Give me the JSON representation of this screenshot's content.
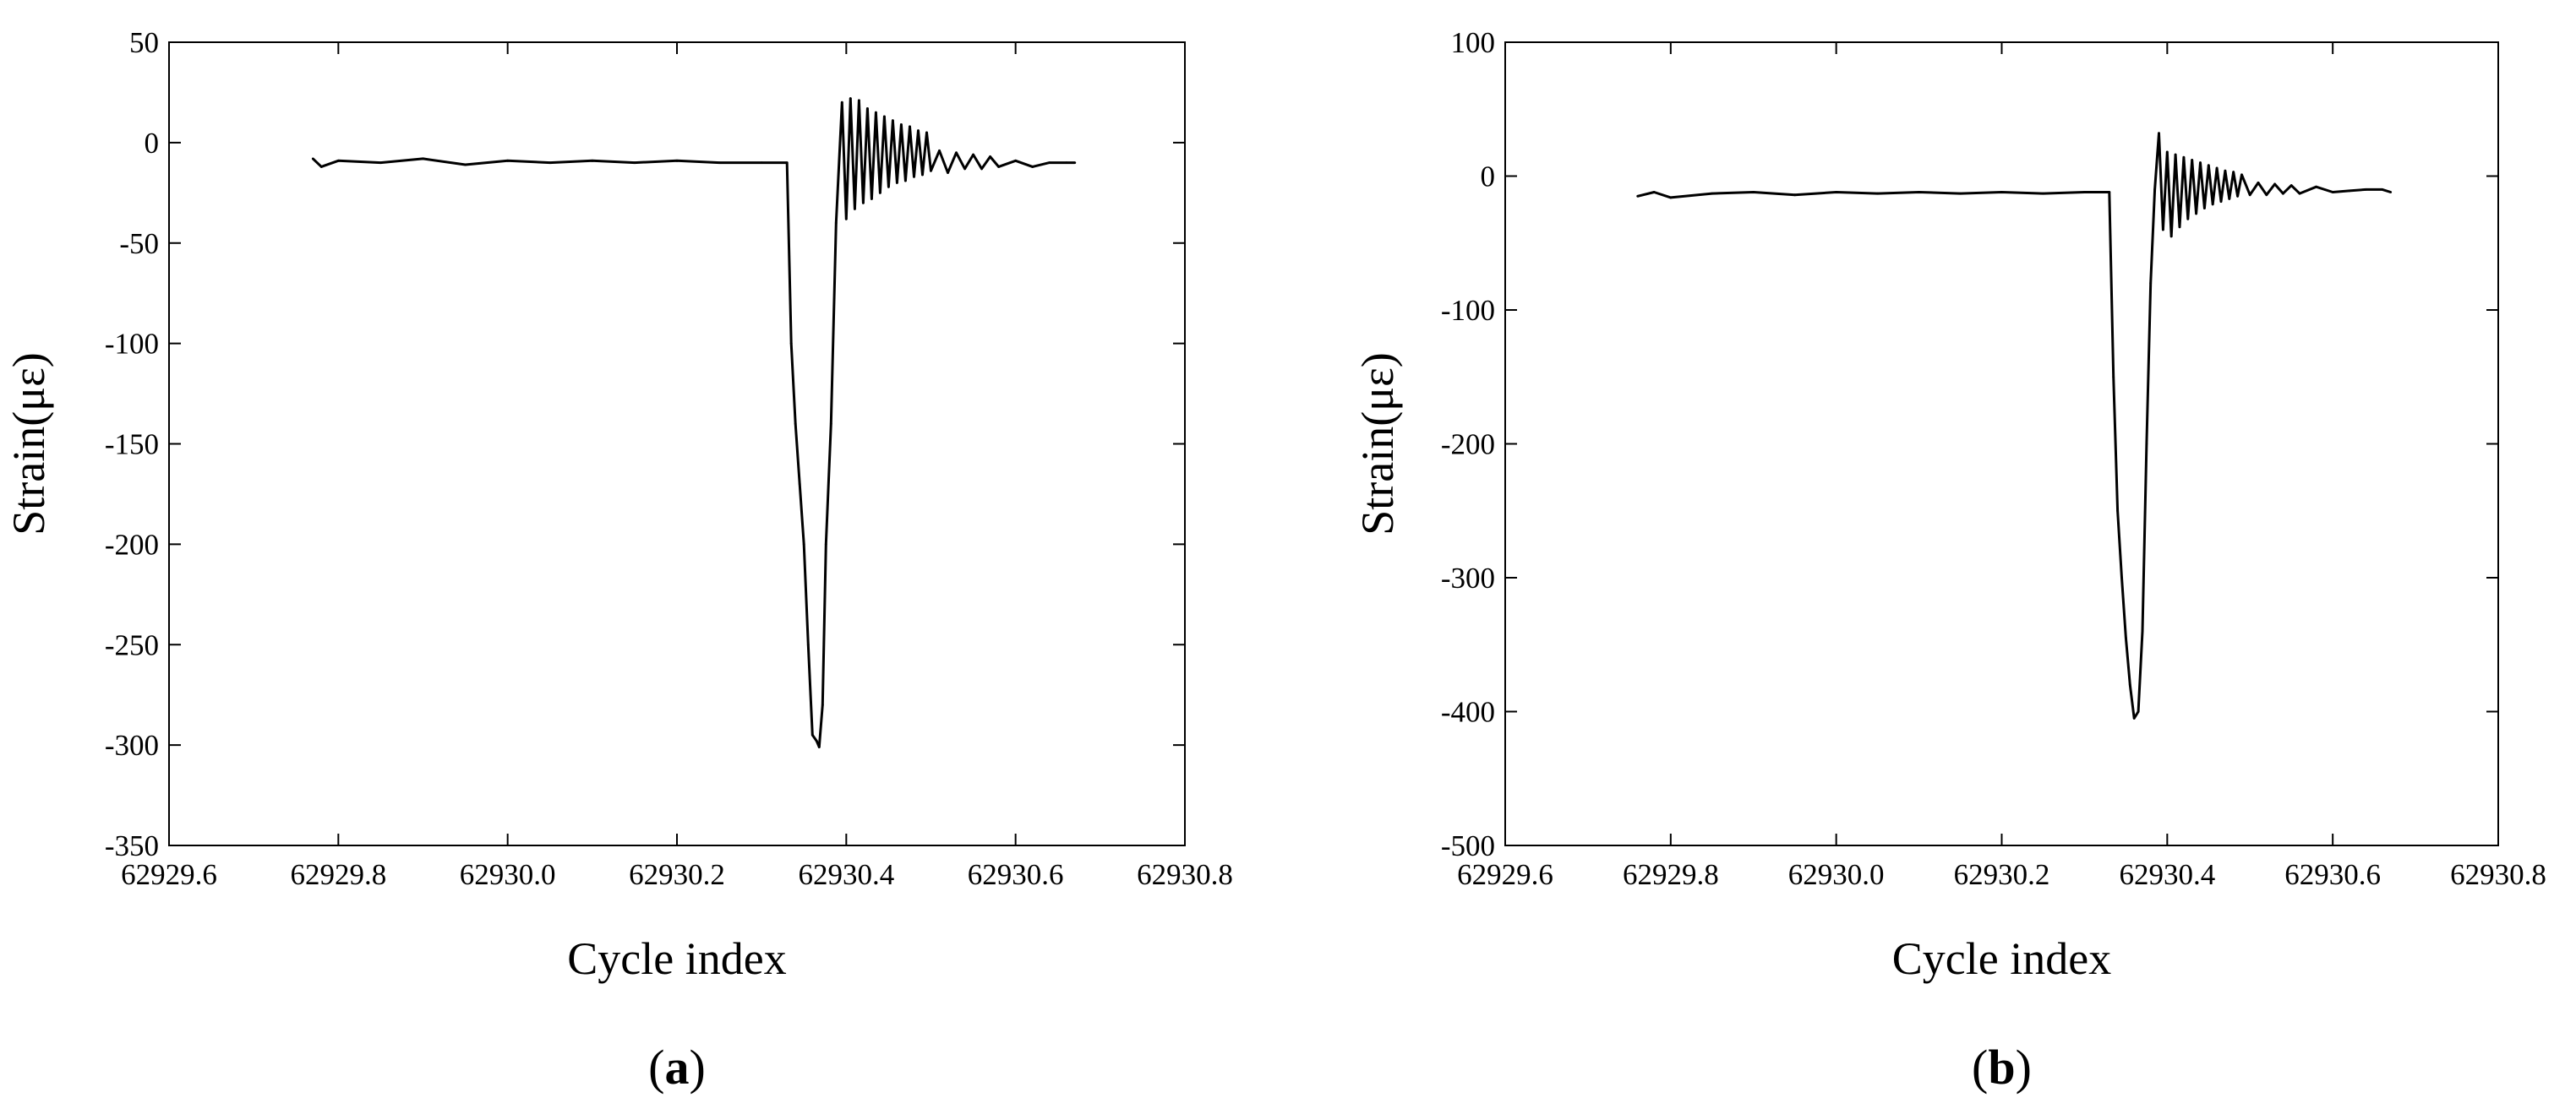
{
  "chart_data": [
    {
      "type": "line",
      "panel_label": {
        "open": "(",
        "letter": "a",
        "close": ")"
      },
      "xlabel": "Cycle index",
      "ylabel": "Strain(με)",
      "xlim": [
        62929.6,
        62930.8
      ],
      "ylim": [
        -350,
        50
      ],
      "xticks": [
        "62929.6",
        "62929.8",
        "62930.0",
        "62930.2",
        "62930.4",
        "62930.6",
        "62930.8"
      ],
      "yticks": [
        "50",
        "0",
        "-50",
        "-100",
        "-150",
        "-200",
        "-250",
        "-300",
        "-350"
      ],
      "grid": false,
      "color": "#000000",
      "series": [
        {
          "x": [
            62929.77,
            62929.78,
            62929.8,
            62929.85,
            62929.9,
            62929.95,
            62930.0,
            62930.05,
            62930.1,
            62930.15,
            62930.2,
            62930.25,
            62930.3,
            62930.33,
            62930.335,
            62930.34,
            62930.345,
            62930.35,
            62930.355,
            62930.36,
            62930.365,
            62930.368,
            62930.372,
            62930.376,
            62930.382,
            62930.388,
            62930.395,
            62930.4,
            62930.405,
            62930.41,
            62930.415,
            62930.42,
            62930.425,
            62930.43,
            62930.435,
            62930.44,
            62930.445,
            62930.45,
            62930.455,
            62930.46,
            62930.465,
            62930.47,
            62930.475,
            62930.48,
            62930.485,
            62930.49,
            62930.495,
            62930.5,
            62930.51,
            62930.52,
            62930.53,
            62930.54,
            62930.55,
            62930.56,
            62930.57,
            62930.58,
            62930.6,
            62930.62,
            62930.64,
            62930.66,
            62930.67
          ],
          "y": [
            -8,
            -12,
            -9,
            -10,
            -8,
            -11,
            -9,
            -10,
            -9,
            -10,
            -9,
            -10,
            -10,
            -10,
            -100,
            -140,
            -170,
            -200,
            -250,
            -295,
            -298,
            -301,
            -280,
            -200,
            -140,
            -40,
            20,
            -38,
            22,
            -33,
            21,
            -30,
            17,
            -28,
            15,
            -25,
            13,
            -22,
            11,
            -20,
            9,
            -19,
            8,
            -17,
            6,
            -16,
            5,
            -14,
            -4,
            -15,
            -5,
            -13,
            -6,
            -13,
            -7,
            -12,
            -9,
            -12,
            -10,
            -10,
            -10
          ]
        }
      ]
    },
    {
      "type": "line",
      "panel_label": {
        "open": "(",
        "letter": "b",
        "close": ")"
      },
      "xlabel": "Cycle index",
      "ylabel": "Strain(με)",
      "xlim": [
        62929.6,
        62930.8
      ],
      "ylim": [
        -500,
        100
      ],
      "xticks": [
        "62929.6",
        "62929.8",
        "62930.0",
        "62930.2",
        "62930.4",
        "62930.6",
        "62930.8"
      ],
      "yticks": [
        "100",
        "0",
        "-100",
        "-200",
        "-300",
        "-400",
        "-500"
      ],
      "grid": false,
      "color": "#000000",
      "series": [
        {
          "x": [
            62929.76,
            62929.78,
            62929.8,
            62929.85,
            62929.9,
            62929.95,
            62930.0,
            62930.05,
            62930.1,
            62930.15,
            62930.2,
            62930.25,
            62930.3,
            62930.33,
            62930.335,
            62930.34,
            62930.345,
            62930.35,
            62930.355,
            62930.36,
            62930.365,
            62930.37,
            62930.375,
            62930.38,
            62930.385,
            62930.39,
            62930.395,
            62930.4,
            62930.405,
            62930.41,
            62930.415,
            62930.42,
            62930.425,
            62930.43,
            62930.435,
            62930.44,
            62930.445,
            62930.45,
            62930.455,
            62930.46,
            62930.465,
            62930.47,
            62930.475,
            62930.48,
            62930.485,
            62930.49,
            62930.5,
            62930.51,
            62930.52,
            62930.53,
            62930.54,
            62930.55,
            62930.56,
            62930.58,
            62930.6,
            62930.62,
            62930.64,
            62930.66,
            62930.67
          ],
          "y": [
            -15,
            -12,
            -16,
            -13,
            -12,
            -14,
            -12,
            -13,
            -12,
            -13,
            -12,
            -13,
            -12,
            -12,
            -150,
            -250,
            -300,
            -345,
            -380,
            -405,
            -400,
            -340,
            -200,
            -80,
            -10,
            32,
            -40,
            18,
            -45,
            16,
            -38,
            14,
            -32,
            12,
            -28,
            10,
            -24,
            8,
            -21,
            6,
            -19,
            4,
            -17,
            3,
            -15,
            1,
            -14,
            -5,
            -14,
            -6,
            -13,
            -7,
            -13,
            -8,
            -12,
            -11,
            -10,
            -10,
            -12
          ]
        }
      ]
    }
  ]
}
